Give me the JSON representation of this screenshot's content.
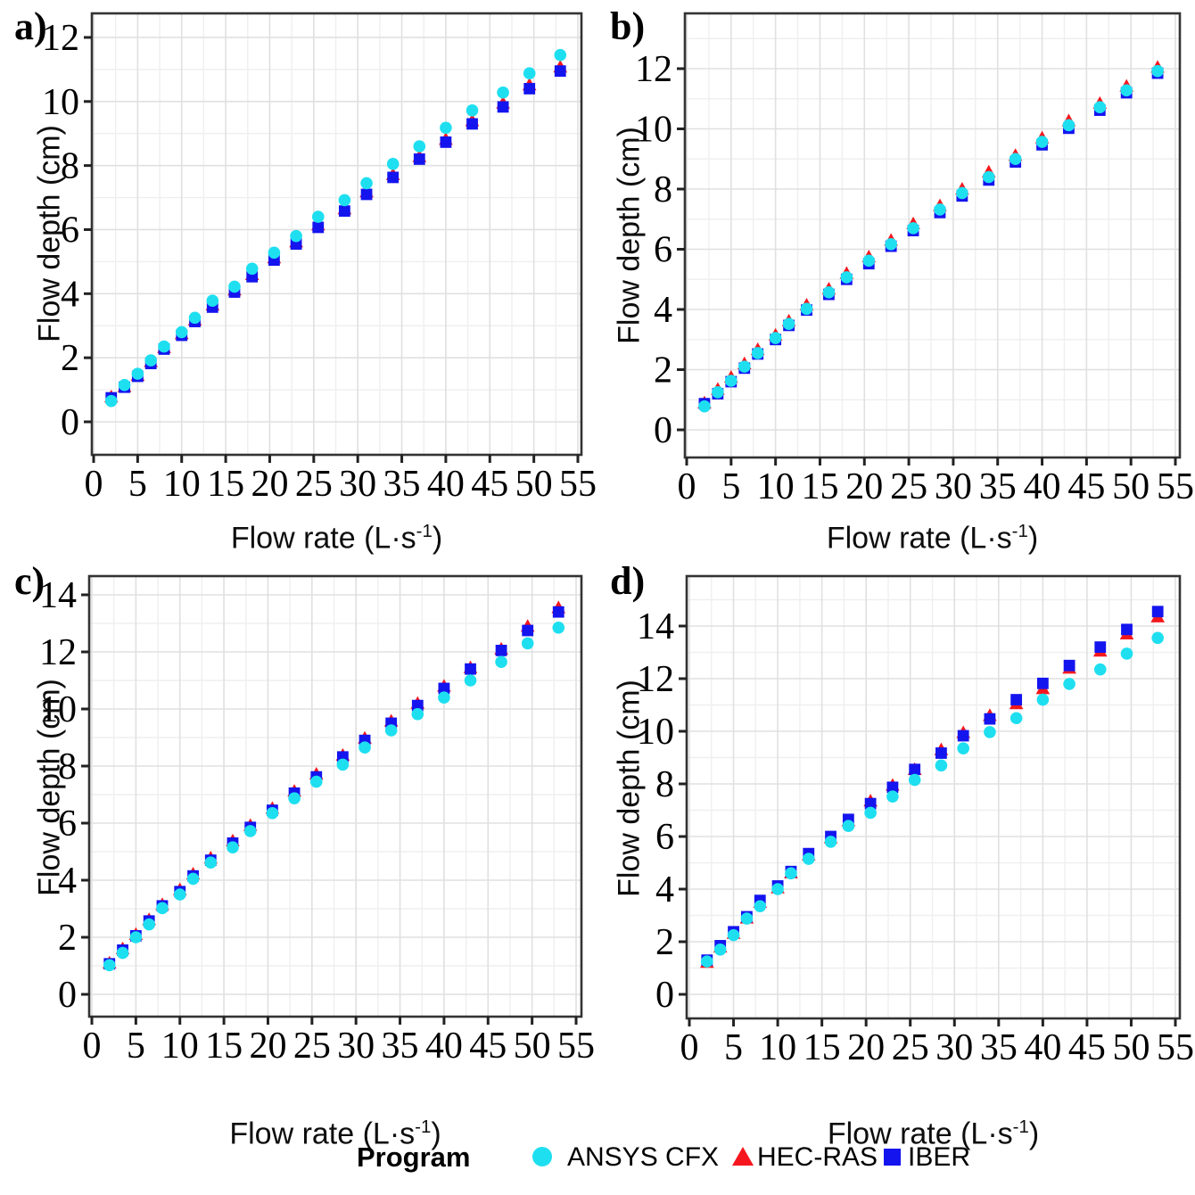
{
  "figure": {
    "xlabel_prefix": "Flow rate (L·s",
    "xlabel_sup": "-1",
    "xlabel_suffix": ")",
    "ylabel": "Flow depth (cm)"
  },
  "legend": {
    "title": "Program",
    "items": [
      {
        "label": "ANSYS CFX",
        "marker": "circle",
        "color": "#1EDFF0"
      },
      {
        "label": "HEC-RAS",
        "marker": "triangle",
        "color": "#F5171D"
      },
      {
        "label": "IBER",
        "marker": "square",
        "color": "#1414EF"
      }
    ]
  },
  "chart_data": [
    {
      "id": "a",
      "panel_label": "a)",
      "type": "scatter",
      "title": "",
      "xlabel": "Flow rate (L·s⁻¹)",
      "ylabel": "Flow depth (cm)",
      "grid": true,
      "legend_position": "bottom",
      "xlim": [
        0,
        55
      ],
      "ylim": [
        -1,
        12.8
      ],
      "xticks": [
        0,
        5,
        10,
        15,
        20,
        25,
        30,
        35,
        40,
        45,
        50,
        55
      ],
      "yticks": [
        0,
        2,
        4,
        6,
        8,
        10,
        12
      ],
      "x": [
        2,
        3.5,
        5,
        6.5,
        8,
        10,
        11.5,
        13.5,
        16,
        18,
        20.5,
        23,
        25.5,
        28.5,
        31,
        34,
        37,
        40,
        43,
        46.5,
        49.5,
        53
      ],
      "series": [
        {
          "name": "ANSYS CFX",
          "marker": "circle",
          "color": "#1EDFF0",
          "zorder": 3,
          "values": [
            0.65,
            1.15,
            1.5,
            1.92,
            2.35,
            2.8,
            3.25,
            3.78,
            4.22,
            4.78,
            5.28,
            5.8,
            6.4,
            6.92,
            7.45,
            8.05,
            8.6,
            9.18,
            9.72,
            10.28,
            10.88,
            11.45
          ]
        },
        {
          "name": "HEC-RAS",
          "marker": "triangle",
          "color": "#F5171D",
          "zorder": 1,
          "values": [
            0.78,
            1.1,
            1.45,
            1.88,
            2.32,
            2.75,
            3.18,
            3.65,
            4.12,
            4.6,
            5.12,
            5.62,
            6.15,
            6.65,
            7.18,
            7.72,
            8.28,
            8.82,
            9.4,
            9.95,
            10.52,
            11.08
          ]
        },
        {
          "name": "IBER",
          "marker": "square",
          "color": "#1414EF",
          "zorder": 2,
          "values": [
            0.75,
            1.08,
            1.42,
            1.82,
            2.27,
            2.7,
            3.13,
            3.58,
            4.05,
            4.53,
            5.05,
            5.55,
            6.07,
            6.58,
            7.1,
            7.63,
            8.2,
            8.73,
            9.3,
            9.83,
            10.4,
            10.95
          ]
        }
      ]
    },
    {
      "id": "b",
      "panel_label": "b)",
      "type": "scatter",
      "title": "",
      "xlabel": "Flow rate (L·s⁻¹)",
      "ylabel": "Flow depth (cm)",
      "grid": true,
      "legend_position": "bottom",
      "xlim": [
        0,
        55
      ],
      "ylim": [
        -0.9,
        13.85
      ],
      "xticks": [
        0,
        5,
        10,
        15,
        20,
        25,
        30,
        35,
        40,
        45,
        50,
        55
      ],
      "yticks": [
        0,
        2,
        4,
        6,
        8,
        10,
        12
      ],
      "x": [
        2,
        3.5,
        5,
        6.5,
        8,
        10,
        11.5,
        13.5,
        16,
        18,
        20.5,
        23,
        25.5,
        28.5,
        31,
        34,
        37,
        40,
        43,
        46.5,
        49.5,
        53
      ],
      "series": [
        {
          "name": "ANSYS CFX",
          "marker": "circle",
          "color": "#1EDFF0",
          "zorder": 3,
          "values": [
            0.78,
            1.25,
            1.63,
            2.1,
            2.55,
            3.05,
            3.52,
            4.02,
            4.57,
            5.07,
            5.62,
            6.17,
            6.7,
            7.32,
            7.87,
            8.4,
            9.0,
            9.57,
            10.12,
            10.72,
            11.28,
            11.92
          ]
        },
        {
          "name": "HEC-RAS",
          "marker": "triangle",
          "color": "#F5171D",
          "zorder": 1,
          "values": [
            0.9,
            1.35,
            1.75,
            2.2,
            2.67,
            3.15,
            3.62,
            4.15,
            4.68,
            5.2,
            5.75,
            6.3,
            6.85,
            7.45,
            8.0,
            8.57,
            9.12,
            9.7,
            10.27,
            10.85,
            11.42,
            12.05
          ]
        },
        {
          "name": "IBER",
          "marker": "square",
          "color": "#1414EF",
          "zorder": 2,
          "values": [
            0.87,
            1.2,
            1.6,
            2.05,
            2.52,
            3.0,
            3.47,
            3.98,
            4.5,
            5.0,
            5.52,
            6.1,
            6.62,
            7.22,
            7.77,
            8.3,
            8.9,
            9.47,
            10.02,
            10.62,
            11.2,
            11.85
          ]
        }
      ]
    },
    {
      "id": "c",
      "panel_label": "c)",
      "type": "scatter",
      "title": "",
      "xlabel": "Flow rate (L·s⁻¹)",
      "ylabel": "Flow depth (cm)",
      "grid": true,
      "legend_position": "bottom",
      "xlim": [
        0,
        55
      ],
      "ylim": [
        -0.8,
        14.65
      ],
      "xticks": [
        0,
        5,
        10,
        15,
        20,
        25,
        30,
        35,
        40,
        45,
        50,
        55
      ],
      "yticks": [
        0,
        2,
        4,
        6,
        8,
        10,
        12,
        14
      ],
      "x": [
        2,
        3.5,
        5,
        6.5,
        8,
        10,
        11.5,
        13.5,
        16,
        18,
        20.5,
        23,
        25.5,
        28.5,
        31,
        34,
        37,
        40,
        43,
        46.5,
        49.5,
        53
      ],
      "series": [
        {
          "name": "ANSYS CFX",
          "marker": "circle",
          "color": "#1EDFF0",
          "zorder": 3,
          "values": [
            1.02,
            1.45,
            2.0,
            2.45,
            3.02,
            3.5,
            4.05,
            4.62,
            5.15,
            5.72,
            6.35,
            6.87,
            7.45,
            8.05,
            8.65,
            9.25,
            9.82,
            10.4,
            11.0,
            11.65,
            12.3,
            12.85
          ]
        },
        {
          "name": "HEC-RAS",
          "marker": "triangle",
          "color": "#F5171D",
          "zorder": 1,
          "values": [
            1.1,
            1.6,
            2.1,
            2.62,
            3.15,
            3.67,
            4.22,
            4.78,
            5.38,
            5.92,
            6.52,
            7.12,
            7.72,
            8.38,
            8.98,
            9.58,
            10.2,
            10.8,
            11.45,
            12.1,
            12.9,
            13.55
          ]
        },
        {
          "name": "IBER",
          "marker": "square",
          "color": "#1414EF",
          "zorder": 2,
          "values": [
            1.07,
            1.55,
            2.05,
            2.57,
            3.1,
            3.6,
            4.15,
            4.7,
            5.3,
            5.85,
            6.45,
            7.05,
            7.62,
            8.32,
            8.9,
            9.5,
            10.12,
            10.72,
            11.4,
            12.05,
            12.75,
            13.4
          ]
        }
      ]
    },
    {
      "id": "d",
      "panel_label": "d)",
      "type": "scatter",
      "title": "",
      "xlabel": "Flow rate (L·s⁻¹)",
      "ylabel": "Flow depth (cm)",
      "grid": true,
      "legend_position": "bottom",
      "xlim": [
        0,
        55
      ],
      "ylim": [
        -0.9,
        15.9
      ],
      "xticks": [
        0,
        5,
        10,
        15,
        20,
        25,
        30,
        35,
        40,
        45,
        50,
        55
      ],
      "yticks": [
        0,
        2,
        4,
        6,
        8,
        10,
        12,
        14
      ],
      "x": [
        2,
        3.5,
        5,
        6.5,
        8,
        10,
        11.5,
        13.5,
        16,
        18,
        20.5,
        23,
        25.5,
        28.5,
        31,
        34,
        37,
        40,
        43,
        46.5,
        49.5,
        53
      ],
      "series": [
        {
          "name": "ANSYS CFX",
          "marker": "circle",
          "color": "#1EDFF0",
          "zorder": 3,
          "values": [
            1.25,
            1.7,
            2.25,
            2.88,
            3.35,
            4.0,
            4.6,
            5.15,
            5.8,
            6.4,
            6.9,
            7.52,
            8.15,
            8.7,
            9.35,
            9.97,
            10.5,
            11.2,
            11.8,
            12.35,
            12.95,
            13.55
          ]
        },
        {
          "name": "HEC-RAS",
          "marker": "triangle",
          "color": "#F5171D",
          "zorder": 1,
          "values": [
            1.22,
            1.8,
            2.32,
            2.9,
            3.5,
            4.05,
            4.62,
            5.3,
            5.95,
            6.6,
            7.35,
            7.95,
            8.55,
            9.3,
            9.95,
            10.6,
            11.05,
            11.62,
            12.4,
            13.05,
            13.7,
            14.35
          ]
        },
        {
          "name": "IBER",
          "marker": "square",
          "color": "#1414EF",
          "zorder": 2,
          "values": [
            1.3,
            1.85,
            2.38,
            2.95,
            3.57,
            4.12,
            4.67,
            5.35,
            6.0,
            6.65,
            7.25,
            7.87,
            8.55,
            9.17,
            9.83,
            10.47,
            11.2,
            11.82,
            12.5,
            13.2,
            13.87,
            14.55
          ]
        }
      ]
    }
  ]
}
